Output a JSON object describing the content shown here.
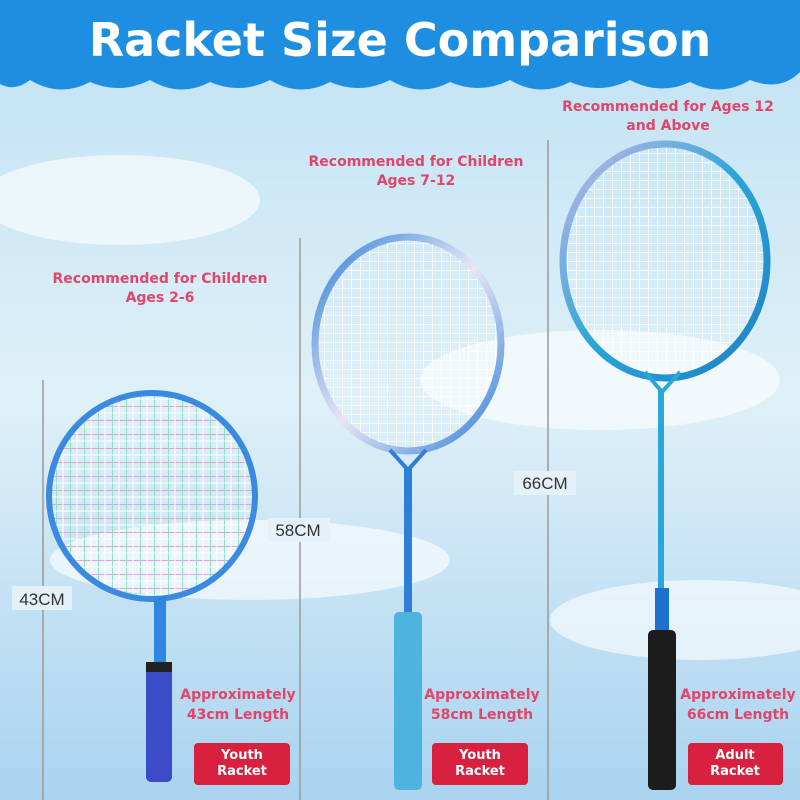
{
  "title": "Racket Size Comparison",
  "rackets": [
    {
      "recommendation": [
        "Recommended for Children",
        "Ages 2-6"
      ],
      "height_label": "43CM",
      "length_note": [
        "Approximately",
        "43cm Length"
      ],
      "badge": [
        "Youth",
        "Racket"
      ]
    },
    {
      "recommendation": [
        "Recommended for Children",
        "Ages 7-12"
      ],
      "height_label": "58CM",
      "length_note": [
        "Approximately",
        "58cm Length"
      ],
      "badge": [
        "Youth",
        "Racket"
      ]
    },
    {
      "recommendation": [
        "Recommended for Ages 12",
        "and Above"
      ],
      "height_label": "66CM",
      "length_note": [
        "Approximately",
        "66cm Length"
      ],
      "badge": [
        "Adult",
        "Racket"
      ]
    }
  ]
}
